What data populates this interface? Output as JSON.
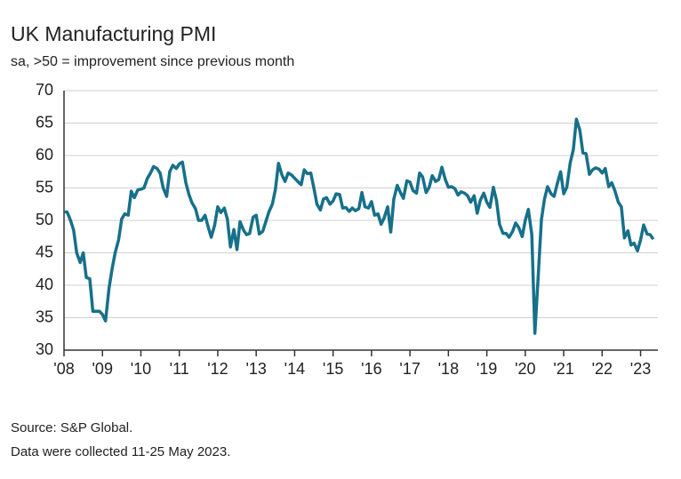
{
  "chart_data": {
    "type": "line",
    "title": "UK Manufacturing PMI",
    "subtitle": "sa, >50 = improvement since previous month",
    "source": "Source: S&P Global.",
    "note": "Data were collected 11-25 May 2023.",
    "ylim": [
      30,
      70
    ],
    "yticks": [
      30,
      35,
      40,
      45,
      50,
      55,
      60,
      65,
      70
    ],
    "xlim": [
      2008,
      2023.45
    ],
    "xticks": [
      {
        "value": 2008,
        "label": "'08"
      },
      {
        "value": 2009,
        "label": "'09"
      },
      {
        "value": 2010,
        "label": "'10"
      },
      {
        "value": 2011,
        "label": "'11"
      },
      {
        "value": 2012,
        "label": "'12"
      },
      {
        "value": 2013,
        "label": "'13"
      },
      {
        "value": 2014,
        "label": "'14"
      },
      {
        "value": 2015,
        "label": "'15"
      },
      {
        "value": 2016,
        "label": "'16"
      },
      {
        "value": 2017,
        "label": "'17"
      },
      {
        "value": 2018,
        "label": "'18"
      },
      {
        "value": 2019,
        "label": "'19"
      },
      {
        "value": 2020,
        "label": "'20"
      },
      {
        "value": 2021,
        "label": "'21"
      },
      {
        "value": 2022,
        "label": "'22"
      },
      {
        "value": 2023,
        "label": "'23"
      }
    ],
    "grid": true,
    "color": "#17708a",
    "x": [
      2008.0,
      2008.08,
      2008.17,
      2008.25,
      2008.33,
      2008.42,
      2008.5,
      2008.58,
      2008.67,
      2008.75,
      2008.83,
      2008.92,
      2009.0,
      2009.08,
      2009.17,
      2009.25,
      2009.33,
      2009.42,
      2009.5,
      2009.58,
      2009.67,
      2009.75,
      2009.83,
      2009.92,
      2010.0,
      2010.08,
      2010.17,
      2010.25,
      2010.33,
      2010.42,
      2010.5,
      2010.58,
      2010.67,
      2010.75,
      2010.83,
      2010.92,
      2011.0,
      2011.08,
      2011.17,
      2011.25,
      2011.33,
      2011.42,
      2011.5,
      2011.58,
      2011.67,
      2011.75,
      2011.83,
      2011.92,
      2012.0,
      2012.08,
      2012.17,
      2012.25,
      2012.33,
      2012.42,
      2012.5,
      2012.58,
      2012.67,
      2012.75,
      2012.83,
      2012.92,
      2013.0,
      2013.08,
      2013.17,
      2013.25,
      2013.33,
      2013.42,
      2013.5,
      2013.58,
      2013.67,
      2013.75,
      2013.83,
      2013.92,
      2014.0,
      2014.08,
      2014.17,
      2014.25,
      2014.33,
      2014.42,
      2014.5,
      2014.58,
      2014.67,
      2014.75,
      2014.83,
      2014.92,
      2015.0,
      2015.08,
      2015.17,
      2015.25,
      2015.33,
      2015.42,
      2015.5,
      2015.58,
      2015.67,
      2015.75,
      2015.83,
      2015.92,
      2016.0,
      2016.08,
      2016.17,
      2016.25,
      2016.33,
      2016.42,
      2016.5,
      2016.58,
      2016.67,
      2016.75,
      2016.83,
      2016.92,
      2017.0,
      2017.08,
      2017.17,
      2017.25,
      2017.33,
      2017.42,
      2017.5,
      2017.58,
      2017.67,
      2017.75,
      2017.83,
      2017.92,
      2018.0,
      2018.08,
      2018.17,
      2018.25,
      2018.33,
      2018.42,
      2018.5,
      2018.58,
      2018.67,
      2018.75,
      2018.83,
      2018.92,
      2019.0,
      2019.08,
      2019.17,
      2019.25,
      2019.33,
      2019.42,
      2019.5,
      2019.58,
      2019.67,
      2019.75,
      2019.83,
      2019.92,
      2020.0,
      2020.08,
      2020.17,
      2020.25,
      2020.33,
      2020.42,
      2020.5,
      2020.58,
      2020.67,
      2020.75,
      2020.83,
      2020.92,
      2021.0,
      2021.08,
      2021.17,
      2021.25,
      2021.33,
      2021.42,
      2021.5,
      2021.58,
      2021.67,
      2021.75,
      2021.83,
      2021.92,
      2022.0,
      2022.08,
      2022.17,
      2022.25,
      2022.33,
      2022.42,
      2022.5,
      2022.58,
      2022.67,
      2022.75,
      2022.83,
      2022.92,
      2023.0,
      2023.08,
      2023.17,
      2023.25,
      2023.33
    ],
    "values": [
      51.3,
      51.3,
      50.0,
      48.5,
      45.0,
      43.5,
      45.0,
      41.2,
      41.0,
      36.0,
      36.0,
      36.0,
      35.5,
      34.5,
      39.5,
      42.5,
      45.0,
      47.0,
      50.2,
      51.0,
      50.8,
      54.5,
      53.5,
      54.7,
      54.8,
      55.0,
      56.5,
      57.3,
      58.3,
      58.0,
      57.3,
      55.0,
      53.7,
      57.5,
      58.5,
      58.0,
      58.7,
      59.0,
      55.8,
      54.0,
      52.7,
      51.8,
      50.0,
      50.0,
      50.8,
      49.0,
      47.4,
      49.3,
      52.1,
      51.2,
      51.9,
      50.2,
      45.9,
      48.6,
      45.5,
      49.8,
      48.5,
      47.8,
      48.0,
      50.5,
      50.8,
      47.9,
      48.3,
      49.8,
      51.3,
      52.5,
      54.8,
      58.8,
      57.0,
      56.0,
      57.3,
      57.0,
      56.5,
      56.0,
      55.5,
      57.8,
      57.2,
      57.3,
      55.0,
      52.5,
      51.6,
      53.3,
      53.5,
      52.5,
      53.0,
      54.1,
      54.0,
      51.9,
      52.0,
      51.4,
      51.9,
      51.5,
      51.8,
      54.3,
      52.1,
      51.9,
      52.9,
      50.8,
      51.0,
      49.4,
      50.4,
      52.1,
      48.2,
      53.3,
      55.4,
      54.3,
      53.4,
      56.1,
      55.9,
      54.6,
      54.2,
      57.3,
      56.7,
      54.3,
      55.1,
      56.9,
      56.0,
      56.3,
      58.2,
      56.3,
      55.1,
      55.2,
      54.9,
      53.9,
      54.4,
      54.2,
      53.8,
      52.8,
      53.8,
      51.1,
      53.1,
      54.2,
      52.8,
      52.0,
      55.1,
      53.1,
      49.4,
      48.0,
      48.0,
      47.4,
      48.3,
      49.6,
      48.9,
      47.5,
      50.0,
      51.7,
      47.8,
      32.6,
      40.7,
      50.1,
      53.3,
      55.2,
      54.1,
      53.7,
      55.6,
      57.5,
      54.1,
      55.1,
      58.9,
      60.9,
      65.6,
      63.9,
      60.4,
      60.3,
      57.1,
      57.8,
      58.1,
      57.9,
      57.3,
      58.0,
      55.2,
      55.8,
      54.6,
      52.8,
      52.1,
      47.3,
      48.4,
      46.2,
      46.5,
      45.3,
      47.0,
      49.3,
      47.9,
      47.8,
      47.1
    ]
  }
}
